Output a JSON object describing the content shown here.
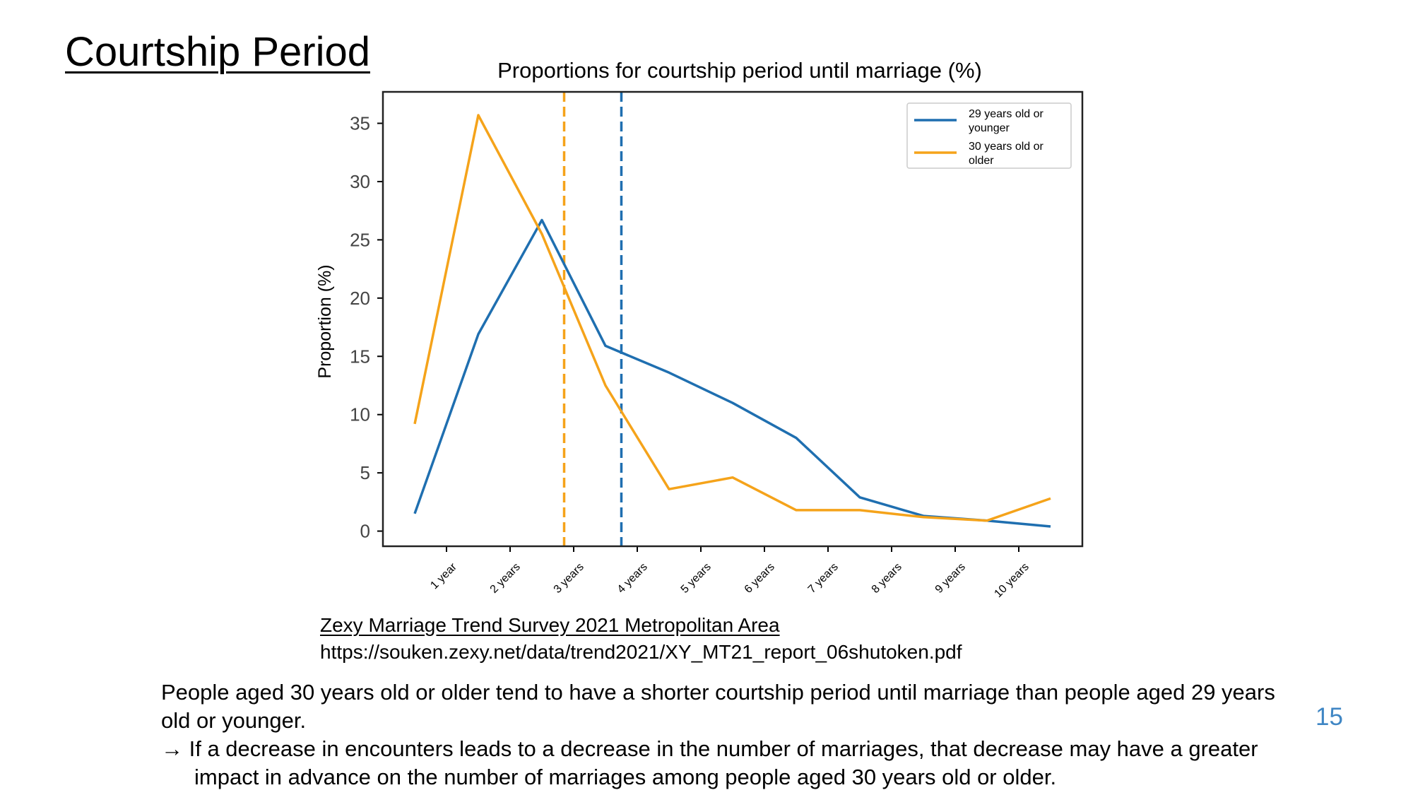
{
  "page": {
    "title": "Courtship Period",
    "source_name": "Zexy Marriage Trend Survey 2021 Metropolitan Area",
    "source_url": "https://souken.zexy.net/data/trend2021/XY_MT21_report_06shutoken.pdf",
    "body_line1": "People aged 30 years old or older tend to have a shorter courtship period until marriage than people aged 29 years old or younger.",
    "body_line2": "→ If a decrease in encounters leads to a decrease in the number of marriages, that decrease may have a greater impact in advance on the number of marriages among people aged 30 years old or older.",
    "page_number": "15"
  },
  "chart_data": {
    "type": "line",
    "title": "Proportions for courtship period until marriage (%)",
    "xlabel": "",
    "ylabel": "Proportion (%)",
    "x_ticks": [
      {
        "x": 1,
        "label": "1 year"
      },
      {
        "x": 2,
        "label": "2 years"
      },
      {
        "x": 3,
        "label": "3 years"
      },
      {
        "x": 4,
        "label": "4 years"
      },
      {
        "x": 5,
        "label": "5 years"
      },
      {
        "x": 6,
        "label": "6 years"
      },
      {
        "x": 7,
        "label": "7 years"
      },
      {
        "x": 8,
        "label": "8 years"
      },
      {
        "x": 9,
        "label": "9 years"
      },
      {
        "x": 10,
        "label": "10 years"
      }
    ],
    "xlim": [
      0,
      11
    ],
    "ylim": [
      -1.3,
      37.7
    ],
    "y_ticks": [
      0,
      5,
      10,
      15,
      20,
      25,
      30,
      35
    ],
    "x": [
      0.5,
      1.5,
      2.5,
      3.5,
      4.5,
      5.5,
      6.5,
      7.5,
      8.5,
      9.5,
      10.5
    ],
    "series": [
      {
        "name": "29 years old or younger",
        "color": "#1f6fb0",
        "values": [
          1.5,
          16.9,
          26.7,
          15.9,
          13.6,
          11.0,
          8.0,
          2.9,
          1.3,
          0.9,
          0.4
        ]
      },
      {
        "name": "30 years old or older",
        "color": "#f5a31a",
        "values": [
          9.2,
          35.7,
          25.5,
          12.5,
          3.6,
          4.6,
          1.8,
          1.8,
          1.2,
          0.9,
          2.8
        ]
      }
    ],
    "reference_lines": [
      {
        "x": 2.85,
        "color": "#f5a31a",
        "style": "dashed"
      },
      {
        "x": 3.75,
        "color": "#1f6fb0",
        "style": "dashed"
      }
    ],
    "legend_position": "top-right",
    "grid": false
  }
}
